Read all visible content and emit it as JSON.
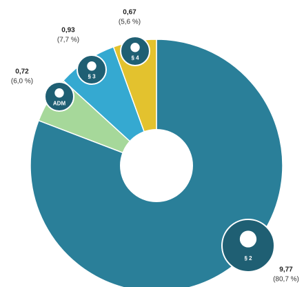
{
  "chart_data": {
    "type": "pie",
    "categories": [
      "§ 2",
      "ADM",
      "§ 3",
      "§ 4"
    ],
    "values": [
      9.77,
      0.72,
      0.93,
      0.67
    ],
    "value_labels": [
      "9,77",
      "0,72",
      "0,93",
      "0,67"
    ],
    "percents": [
      80.7,
      6.0,
      7.7,
      5.6
    ],
    "percent_labels": [
      "(80,7 %)",
      "(6,0 %)",
      "(7,7 %)",
      "(5,6 %)"
    ],
    "colors": [
      "#2a7f99",
      "#a6d89a",
      "#35a9d1",
      "#e3c22e"
    ],
    "donut": true
  }
}
